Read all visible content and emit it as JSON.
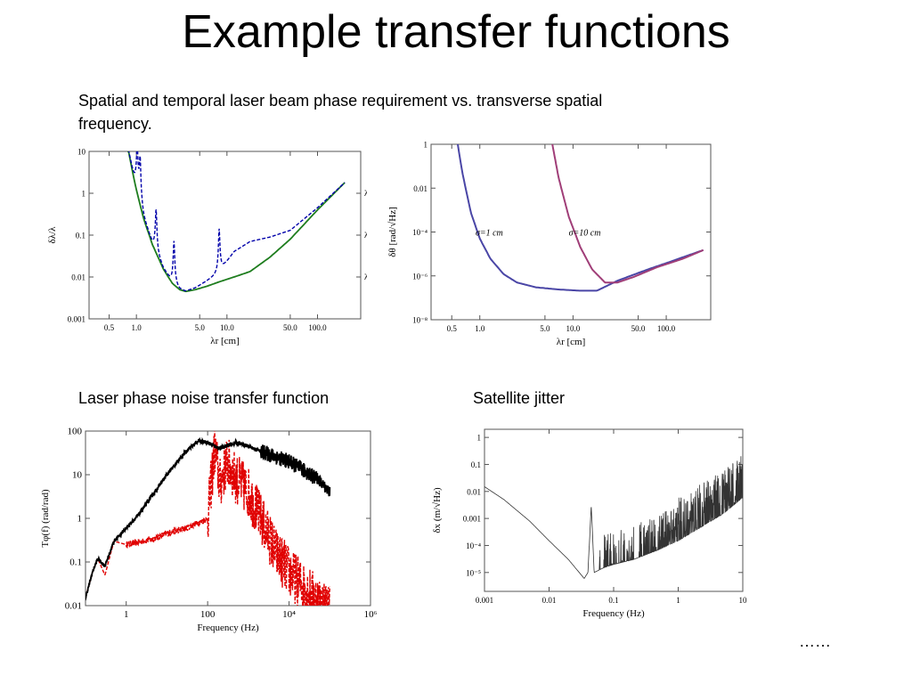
{
  "slide": {
    "title": "Example transfer functions",
    "caption_top": "Spatial and temporal laser beam phase requirement vs. transverse spatial frequency.",
    "caption_noise": "Laser phase noise transfer function",
    "caption_jitter": "Satellite jitter",
    "ellipsis": "……"
  },
  "colors": {
    "green": "#1e7d1e",
    "blue_dashed": "#0000aa",
    "purple": "#4a46a6",
    "magenta": "#a03e78",
    "black": "#000000",
    "red": "#e00000",
    "gray": "#333333"
  },
  "chart_data": [
    {
      "type": "line",
      "xlabel": "λr [cm]",
      "ylabel": "δλ/λ",
      "xscale": "log",
      "yscale": "log",
      "xlim": [
        0.3,
        300
      ],
      "ylim": [
        0.001,
        10
      ],
      "xticks": [
        "0.5",
        "1.0",
        "5.0",
        "10.0",
        "50.0",
        "100.0"
      ],
      "yticks": [
        "0.001",
        "0.01",
        "0.1",
        "1",
        "10"
      ],
      "right_ticks": [
        "λ",
        "λ/10",
        "λ/100"
      ],
      "series": [
        {
          "style": "solid-green",
          "x": [
            0.82,
            0.9,
            1.0,
            1.2,
            1.5,
            2.0,
            2.5,
            3.0,
            3.5,
            4.5,
            6.0,
            8.0,
            12.0,
            18.0,
            30.0,
            50.0,
            100.0,
            200.0
          ],
          "y": [
            10,
            3.5,
            1.2,
            0.25,
            0.06,
            0.015,
            0.007,
            0.005,
            0.0045,
            0.005,
            0.006,
            0.0075,
            0.01,
            0.0135,
            0.03,
            0.08,
            0.4,
            1.8
          ]
        },
        {
          "style": "dashed-blue",
          "x": [
            0.82,
            0.9,
            1.0,
            1.2,
            1.5,
            2.0,
            2.5,
            3.0,
            3.5,
            4.5,
            6.0,
            8.0,
            12.0,
            18.0,
            30.0,
            50.0,
            100.0,
            200.0
          ],
          "y": [
            10,
            3.5,
            1.2,
            0.25,
            0.06,
            0.015,
            0.007,
            0.005,
            0.0045,
            0.0055,
            0.008,
            0.012,
            0.04,
            0.07,
            0.09,
            0.13,
            0.45,
            1.8
          ],
          "spikes": [
            1.02,
            1.1,
            1.65,
            2.6,
            8.2
          ]
        }
      ]
    },
    {
      "type": "line",
      "xlabel": "λr [cm]",
      "ylabel": "δθ [rad/√Hz]",
      "xscale": "log",
      "yscale": "log",
      "xlim": [
        0.3,
        300
      ],
      "ylim": [
        1e-08,
        1
      ],
      "xticks": [
        "0.5",
        "1.0",
        "5.0",
        "10.0",
        "50.0",
        "100.0"
      ],
      "yticks": [
        "10⁻⁸",
        "10⁻⁶",
        "10⁻⁴",
        "0.01",
        "1"
      ],
      "annotations": [
        "σ=1 cm",
        "σ=10 cm"
      ],
      "series": [
        {
          "name": "σ=1 cm",
          "x": [
            0.58,
            0.65,
            0.8,
            1.0,
            1.3,
            1.8,
            2.5,
            4.0,
            7.0,
            12.0,
            18.0,
            30.0,
            60.0,
            120.0,
            250.0
          ],
          "y": [
            1,
            0.05,
            0.0008,
            5e-05,
            6e-06,
            1.2e-06,
            5e-07,
            3e-07,
            2.4e-07,
            2.1e-07,
            2.1e-07,
            6e-07,
            1.8e-06,
            5e-06,
            1.5e-05
          ]
        },
        {
          "name": "σ=10 cm",
          "x": [
            6.0,
            7.0,
            9.0,
            12.0,
            16.0,
            22.0,
            30.0,
            45.0,
            80.0,
            150.0,
            250.0
          ],
          "y": [
            1,
            0.03,
            0.0005,
            2e-05,
            2e-06,
            5e-07,
            5e-07,
            9e-07,
            2.5e-06,
            6e-06,
            1.5e-05
          ]
        }
      ]
    },
    {
      "type": "line",
      "xlabel": "Frequency (Hz)",
      "ylabel": "Tφ(f) (rad/rad)",
      "xscale": "log",
      "yscale": "log",
      "xlim": [
        0.1,
        1000000
      ],
      "ylim": [
        0.01,
        100
      ],
      "xticks": [
        "1",
        "100",
        "10⁴",
        "10⁶"
      ],
      "yticks": [
        "0.01",
        "0.1",
        "1",
        "10",
        "100"
      ],
      "series": [
        {
          "style": "solid-black",
          "x": [
            0.1,
            0.15,
            0.2,
            0.3,
            0.5,
            1,
            2,
            5,
            10,
            30,
            60,
            100,
            200,
            500,
            1000,
            3000,
            10000,
            50000,
            100000,
            300000,
            1000000
          ],
          "y": [
            0.015,
            0.06,
            0.12,
            0.08,
            0.3,
            0.6,
            1.2,
            4,
            10,
            35,
            60,
            55,
            40,
            55,
            45,
            30,
            20,
            8,
            4,
            1.5,
            0.4
          ]
        },
        {
          "style": "dashed-red",
          "x": [
            0.1,
            0.15,
            0.2,
            0.3,
            0.5,
            1,
            2,
            5,
            10,
            30,
            60,
            100,
            150,
            200,
            300,
            500,
            1000,
            2000,
            5000,
            10000,
            30000,
            100000
          ],
          "y": [
            0.015,
            0.06,
            0.12,
            0.05,
            0.3,
            0.25,
            0.28,
            0.35,
            0.45,
            0.6,
            0.8,
            1,
            40,
            6,
            20,
            8,
            4,
            1,
            0.15,
            0.06,
            0.02,
            0.008
          ]
        }
      ]
    },
    {
      "type": "line",
      "xlabel": "Frequency (Hz)",
      "ylabel": "δx (m/√Hz)",
      "xscale": "log",
      "yscale": "log",
      "xlim": [
        0.001,
        10
      ],
      "ylim": [
        2e-06,
        2
      ],
      "xticks": [
        "0.001",
        "0.01",
        "0.1",
        "1",
        "10"
      ],
      "yticks": [
        "10⁻⁵",
        "10⁻⁴",
        "0.001",
        "0.01",
        "0.1",
        "1"
      ],
      "series": [
        {
          "style": "thin-black",
          "x": [
            0.001,
            0.002,
            0.005,
            0.01,
            0.02,
            0.035,
            0.04,
            0.045,
            0.05,
            0.07,
            0.1,
            0.2,
            0.5,
            1,
            2,
            5,
            10
          ],
          "y": [
            0.015,
            0.005,
            0.0008,
            0.00015,
            3e-05,
            6e-06,
            1e-05,
            0.003,
            1e-05,
            1.5e-05,
            2e-05,
            3e-05,
            7e-05,
            0.00015,
            0.0004,
            0.0015,
            0.006
          ]
        }
      ]
    }
  ]
}
